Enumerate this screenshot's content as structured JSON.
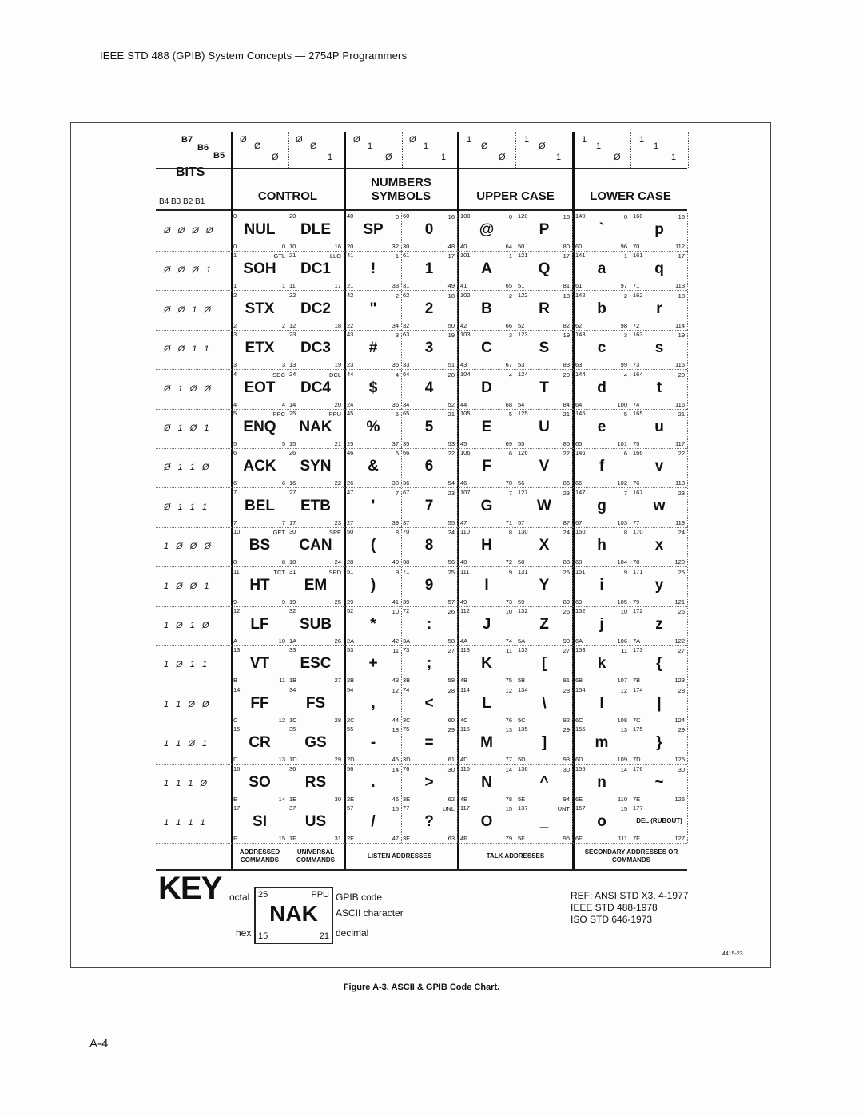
{
  "header": {
    "title": "IEEE STD 488 (GPIB) System Concepts — 2754P Programmers"
  },
  "chart": {
    "bits_labels": {
      "b7": "B7",
      "b6": "B6",
      "b5": "B5",
      "bits": "BITS",
      "b4b1": "B4 B3 B2 B1"
    },
    "column_bits": [
      [
        "Ø",
        "Ø",
        "Ø"
      ],
      [
        "Ø",
        "Ø",
        "1"
      ],
      [
        "Ø",
        "1",
        "Ø"
      ],
      [
        "Ø",
        "1",
        "1"
      ],
      [
        "1",
        "Ø",
        "Ø"
      ],
      [
        "1",
        "Ø",
        "1"
      ],
      [
        "1",
        "1",
        "Ø"
      ],
      [
        "1",
        "1",
        "1"
      ]
    ],
    "categories": [
      "CONTROL",
      "NUMBERS SYMBOLS",
      "UPPER CASE",
      "LOWER CASE"
    ],
    "rows": [
      {
        "bits": "Ø Ø Ø Ø",
        "cells": [
          [
            "0",
            "",
            "NUL",
            "0",
            "0"
          ],
          [
            "20",
            "",
            "DLE",
            "10",
            "16"
          ],
          [
            "40",
            "0",
            "SP",
            "20",
            "32"
          ],
          [
            "60",
            "16",
            "0",
            "30",
            "48"
          ],
          [
            "100",
            "0",
            "@",
            "40",
            "64"
          ],
          [
            "120",
            "16",
            "P",
            "50",
            "80"
          ],
          [
            "140",
            "0",
            "`",
            "60",
            "96"
          ],
          [
            "160",
            "16",
            "p",
            "70",
            "112"
          ]
        ]
      },
      {
        "bits": "Ø Ø Ø 1",
        "cells": [
          [
            "1",
            "GTL",
            "SOH",
            "1",
            "1"
          ],
          [
            "21",
            "LLO",
            "DC1",
            "11",
            "17"
          ],
          [
            "41",
            "1",
            "!",
            "21",
            "33"
          ],
          [
            "61",
            "17",
            "1",
            "31",
            "49"
          ],
          [
            "101",
            "1",
            "A",
            "41",
            "65"
          ],
          [
            "121",
            "17",
            "Q",
            "51",
            "81"
          ],
          [
            "141",
            "1",
            "a",
            "61",
            "97"
          ],
          [
            "161",
            "17",
            "q",
            "71",
            "113"
          ]
        ]
      },
      {
        "bits": "Ø Ø 1 Ø",
        "cells": [
          [
            "2",
            "",
            "STX",
            "2",
            "2"
          ],
          [
            "22",
            "",
            "DC2",
            "12",
            "18"
          ],
          [
            "42",
            "2",
            "\"",
            "22",
            "34"
          ],
          [
            "62",
            "18",
            "2",
            "32",
            "50"
          ],
          [
            "102",
            "2",
            "B",
            "42",
            "66"
          ],
          [
            "122",
            "18",
            "R",
            "52",
            "82"
          ],
          [
            "142",
            "2",
            "b",
            "62",
            "98"
          ],
          [
            "162",
            "18",
            "r",
            "72",
            "114"
          ]
        ]
      },
      {
        "bits": "Ø Ø 1 1",
        "cells": [
          [
            "3",
            "",
            "ETX",
            "3",
            "3"
          ],
          [
            "23",
            "",
            "DC3",
            "13",
            "19"
          ],
          [
            "43",
            "3",
            "#",
            "23",
            "35"
          ],
          [
            "63",
            "19",
            "3",
            "33",
            "51"
          ],
          [
            "103",
            "3",
            "C",
            "43",
            "67"
          ],
          [
            "123",
            "19",
            "S",
            "53",
            "83"
          ],
          [
            "143",
            "3",
            "c",
            "63",
            "99"
          ],
          [
            "163",
            "19",
            "s",
            "73",
            "115"
          ]
        ]
      },
      {
        "bits": "Ø 1 Ø Ø",
        "cells": [
          [
            "4",
            "SDC",
            "EOT",
            "4",
            "4"
          ],
          [
            "24",
            "DCL",
            "DC4",
            "14",
            "20"
          ],
          [
            "44",
            "4",
            "$",
            "24",
            "36"
          ],
          [
            "64",
            "20",
            "4",
            "34",
            "52"
          ],
          [
            "104",
            "4",
            "D",
            "44",
            "68"
          ],
          [
            "124",
            "20",
            "T",
            "54",
            "84"
          ],
          [
            "144",
            "4",
            "d",
            "64",
            "100"
          ],
          [
            "164",
            "20",
            "t",
            "74",
            "116"
          ]
        ]
      },
      {
        "bits": "Ø 1 Ø 1",
        "cells": [
          [
            "5",
            "PPC",
            "ENQ",
            "5",
            "5"
          ],
          [
            "25",
            "PPU",
            "NAK",
            "15",
            "21"
          ],
          [
            "45",
            "5",
            "%",
            "25",
            "37"
          ],
          [
            "65",
            "21",
            "5",
            "35",
            "53"
          ],
          [
            "105",
            "5",
            "E",
            "45",
            "69"
          ],
          [
            "125",
            "21",
            "U",
            "55",
            "85"
          ],
          [
            "145",
            "5",
            "e",
            "65",
            "101"
          ],
          [
            "165",
            "21",
            "u",
            "75",
            "117"
          ]
        ]
      },
      {
        "bits": "Ø 1 1 Ø",
        "cells": [
          [
            "6",
            "",
            "ACK",
            "6",
            "6"
          ],
          [
            "26",
            "",
            "SYN",
            "16",
            "22"
          ],
          [
            "46",
            "6",
            "&",
            "26",
            "38"
          ],
          [
            "66",
            "22",
            "6",
            "36",
            "54"
          ],
          [
            "106",
            "6",
            "F",
            "46",
            "70"
          ],
          [
            "126",
            "22",
            "V",
            "56",
            "86"
          ],
          [
            "146",
            "6",
            "f",
            "66",
            "102"
          ],
          [
            "166",
            "22",
            "v",
            "76",
            "118"
          ]
        ]
      },
      {
        "bits": "Ø 1 1 1",
        "cells": [
          [
            "7",
            "",
            "BEL",
            "7",
            "7"
          ],
          [
            "27",
            "",
            "ETB",
            "17",
            "23"
          ],
          [
            "47",
            "7",
            "'",
            "27",
            "39"
          ],
          [
            "67",
            "23",
            "7",
            "37",
            "55"
          ],
          [
            "107",
            "7",
            "G",
            "47",
            "71"
          ],
          [
            "127",
            "23",
            "W",
            "57",
            "87"
          ],
          [
            "147",
            "7",
            "g",
            "67",
            "103"
          ],
          [
            "167",
            "23",
            "w",
            "77",
            "119"
          ]
        ]
      },
      {
        "bits": "1 Ø Ø Ø",
        "cells": [
          [
            "10",
            "GET",
            "BS",
            "8",
            "8"
          ],
          [
            "30",
            "SPE",
            "CAN",
            "18",
            "24"
          ],
          [
            "50",
            "8",
            "(",
            "28",
            "40"
          ],
          [
            "70",
            "24",
            "8",
            "38",
            "56"
          ],
          [
            "110",
            "8",
            "H",
            "48",
            "72"
          ],
          [
            "130",
            "24",
            "X",
            "58",
            "88"
          ],
          [
            "150",
            "8",
            "h",
            "68",
            "104"
          ],
          [
            "170",
            "24",
            "x",
            "78",
            "120"
          ]
        ]
      },
      {
        "bits": "1 Ø Ø 1",
        "cells": [
          [
            "11",
            "TCT",
            "HT",
            "9",
            "9"
          ],
          [
            "31",
            "SPD",
            "EM",
            "19",
            "25"
          ],
          [
            "51",
            "9",
            ")",
            "29",
            "41"
          ],
          [
            "71",
            "25",
            "9",
            "39",
            "57"
          ],
          [
            "111",
            "9",
            "I",
            "49",
            "73"
          ],
          [
            "131",
            "25",
            "Y",
            "59",
            "89"
          ],
          [
            "151",
            "9",
            "i",
            "69",
            "105"
          ],
          [
            "171",
            "25",
            "y",
            "79",
            "121"
          ]
        ]
      },
      {
        "bits": "1 Ø 1 Ø",
        "cells": [
          [
            "12",
            "",
            "LF",
            "A",
            "10"
          ],
          [
            "32",
            "",
            "SUB",
            "1A",
            "26"
          ],
          [
            "52",
            "10",
            "*",
            "2A",
            "42"
          ],
          [
            "72",
            "26",
            ":",
            "3A",
            "58"
          ],
          [
            "112",
            "10",
            "J",
            "4A",
            "74"
          ],
          [
            "132",
            "26",
            "Z",
            "5A",
            "90"
          ],
          [
            "152",
            "10",
            "j",
            "6A",
            "106"
          ],
          [
            "172",
            "26",
            "z",
            "7A",
            "122"
          ]
        ]
      },
      {
        "bits": "1 Ø 1 1",
        "cells": [
          [
            "13",
            "",
            "VT",
            "B",
            "11"
          ],
          [
            "33",
            "",
            "ESC",
            "1B",
            "27"
          ],
          [
            "53",
            "11",
            "+",
            "2B",
            "43"
          ],
          [
            "73",
            "27",
            ";",
            "3B",
            "59"
          ],
          [
            "113",
            "11",
            "K",
            "4B",
            "75"
          ],
          [
            "133",
            "27",
            "[",
            "5B",
            "91"
          ],
          [
            "153",
            "11",
            "k",
            "6B",
            "107"
          ],
          [
            "173",
            "27",
            "{",
            "7B",
            "123"
          ]
        ]
      },
      {
        "bits": "1 1 Ø Ø",
        "cells": [
          [
            "14",
            "",
            "FF",
            "C",
            "12"
          ],
          [
            "34",
            "",
            "FS",
            "1C",
            "28"
          ],
          [
            "54",
            "12",
            ",",
            "2C",
            "44"
          ],
          [
            "74",
            "28",
            "<",
            "3C",
            "60"
          ],
          [
            "114",
            "12",
            "L",
            "4C",
            "76"
          ],
          [
            "134",
            "28",
            "\\",
            "5C",
            "92"
          ],
          [
            "154",
            "12",
            "l",
            "6C",
            "108"
          ],
          [
            "174",
            "28",
            "|",
            "7C",
            "124"
          ]
        ]
      },
      {
        "bits": "1 1 Ø 1",
        "cells": [
          [
            "15",
            "",
            "CR",
            "D",
            "13"
          ],
          [
            "35",
            "",
            "GS",
            "1D",
            "29"
          ],
          [
            "55",
            "13",
            "-",
            "2D",
            "45"
          ],
          [
            "75",
            "29",
            "=",
            "3D",
            "61"
          ],
          [
            "115",
            "13",
            "M",
            "4D",
            "77"
          ],
          [
            "135",
            "29",
            "]",
            "5D",
            "93"
          ],
          [
            "155",
            "13",
            "m",
            "6D",
            "109"
          ],
          [
            "175",
            "29",
            "}",
            "7D",
            "125"
          ]
        ]
      },
      {
        "bits": "1 1 1 Ø",
        "cells": [
          [
            "16",
            "",
            "SO",
            "E",
            "14"
          ],
          [
            "36",
            "",
            "RS",
            "1E",
            "30"
          ],
          [
            "56",
            "14",
            ".",
            "2E",
            "46"
          ],
          [
            "76",
            "30",
            ">",
            "3E",
            "62"
          ],
          [
            "116",
            "14",
            "N",
            "4E",
            "78"
          ],
          [
            "136",
            "30",
            "^",
            "5E",
            "94"
          ],
          [
            "156",
            "14",
            "n",
            "6E",
            "110"
          ],
          [
            "176",
            "30",
            "~",
            "7E",
            "126"
          ]
        ]
      },
      {
        "bits": "1 1 1 1",
        "cells": [
          [
            "17",
            "",
            "SI",
            "F",
            "15"
          ],
          [
            "37",
            "",
            "US",
            "1F",
            "31"
          ],
          [
            "57",
            "15",
            "/",
            "2F",
            "47"
          ],
          [
            "77",
            "UNL",
            "?",
            "3F",
            "63"
          ],
          [
            "117",
            "15",
            "O",
            "4F",
            "79"
          ],
          [
            "137",
            "UNT",
            "_",
            "5F",
            "95"
          ],
          [
            "157",
            "15",
            "o",
            "6F",
            "111"
          ],
          [
            "177",
            "",
            "DEL (RUBOUT)",
            "7F",
            "127"
          ]
        ]
      }
    ],
    "footer_groups": [
      "ADDRESSED COMMANDS",
      "UNIVERSAL COMMANDS",
      "LISTEN ADDRESSES",
      "TALK ADDRESSES",
      "SECONDARY ADDRESSES OR COMMANDS"
    ]
  },
  "key": {
    "title": "KEY",
    "octal_label": "octal",
    "hex_label": "hex",
    "octal": "25",
    "gpib": "PPU",
    "char": "NAK",
    "hex": "15",
    "decimal": "21",
    "gpib_desc": "GPIB code",
    "ascii_desc": "ASCII character",
    "decimal_desc": "decimal"
  },
  "references": [
    "REF: ANSI STD X3. 4-1977",
    "IEEE STD 488-1978",
    "ISO STD 646-1973"
  ],
  "drawing_number": "4415-23",
  "caption": "Figure A-3. ASCII & GPIB Code Chart.",
  "page_number": "A-4"
}
